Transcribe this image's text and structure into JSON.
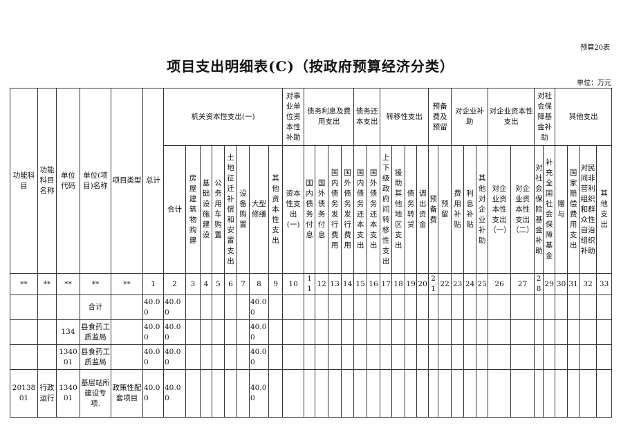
{
  "form_no": "预算20表",
  "title": "项目支出明细表(C)（按政府预算经济分类）",
  "unit": "单位：万元",
  "fixed_headers": [
    "功能科目",
    "功能科目名称",
    "单位代码",
    "单位(项目)名称",
    "项目类型",
    "总计"
  ],
  "groups": [
    {
      "label": "机关资本性支出(一)",
      "span": 8
    },
    {
      "label": "对事业单位资本性补助",
      "span": 1
    },
    {
      "label": "债务利息及费用支出",
      "span": 4
    },
    {
      "label": "债务还本支出",
      "span": 2
    },
    {
      "label": "转移性支出",
      "span": 4
    },
    {
      "label": "预备费及预留",
      "span": 2
    },
    {
      "label": "对企业补助",
      "span": 3
    },
    {
      "label": "对企业资本性支出",
      "span": 2
    },
    {
      "label": "对社会保障基金补助",
      "span": 2
    },
    {
      "label": "其他支出",
      "span": 4
    }
  ],
  "sub_headers": [
    "合计",
    "房屋建筑物购建",
    "基础设施建设",
    "公务用车购置",
    "土地征迁补偿和安置支出",
    "设备购置",
    "大型修缮",
    "其他资本性支出",
    "资本性支出(一)",
    "国内债务付息",
    "国外债务付息",
    "国内债务发行费用",
    "国外债务发行费用",
    "国内债务还本支出",
    "国外债务还本支出",
    "上下级政府间转移性支出",
    "援助其他地区支出",
    "债务转贷",
    "调出资金",
    "预备费",
    "预留",
    "费用补贴",
    "利息补贴",
    "其他对企业补助",
    "对企业资本性支出（一）",
    "对企业资本性支出（二）",
    "对社会保险基金补助",
    "补充全国社会保障基金",
    "赠与",
    "国家赔偿费用支出",
    "对民间非营利组织和群众性自治组织补助",
    "其他支出"
  ],
  "number_row": [
    "**",
    "**",
    "**",
    "**",
    "**",
    "1",
    "2",
    "3",
    "4",
    "5",
    "6",
    "7",
    "8",
    "9",
    "10",
    "11",
    "12",
    "13",
    "14",
    "15",
    "16",
    "17",
    "18",
    "19",
    "20",
    "21",
    "22",
    "23",
    "24",
    "25",
    "26",
    "27",
    "28",
    "29",
    "30",
    "31",
    "32",
    "33"
  ],
  "rows": [
    [
      "",
      "",
      "",
      "合计",
      "",
      "40.00",
      "40.00",
      "",
      "",
      "",
      "",
      "",
      "40.00",
      "",
      "",
      "",
      "",
      "",
      "",
      "",
      "",
      "",
      "",
      "",
      "",
      "",
      "",
      "",
      "",
      "",
      "",
      "",
      "",
      "",
      "",
      "",
      "",
      ""
    ],
    [
      "",
      "",
      "134",
      "县食药工质监局",
      "",
      "40.00",
      "40.00",
      "",
      "",
      "",
      "",
      "",
      "40.00",
      "",
      "",
      "",
      "",
      "",
      "",
      "",
      "",
      "",
      "",
      "",
      "",
      "",
      "",
      "",
      "",
      "",
      "",
      "",
      "",
      "",
      "",
      "",
      "",
      ""
    ],
    [
      "",
      "",
      "134001",
      "县食药工质监局",
      "",
      "40.00",
      "40.00",
      "",
      "",
      "",
      "",
      "",
      "40.00",
      "",
      "",
      "",
      "",
      "",
      "",
      "",
      "",
      "",
      "",
      "",
      "",
      "",
      "",
      "",
      "",
      "",
      "",
      "",
      "",
      "",
      "",
      "",
      "",
      ""
    ],
    [
      "2013801",
      "行政运行",
      "134001",
      "基层站所建设专项.",
      "政策性配套项目",
      "40.00",
      "40.00",
      "",
      "",
      "",
      "",
      "",
      "40.00",
      "",
      "",
      "",
      "",
      "",
      "",
      "",
      "",
      "",
      "",
      "",
      "",
      "",
      "",
      "",
      "",
      "",
      "",
      "",
      "",
      "",
      "",
      "",
      "",
      ""
    ]
  ]
}
